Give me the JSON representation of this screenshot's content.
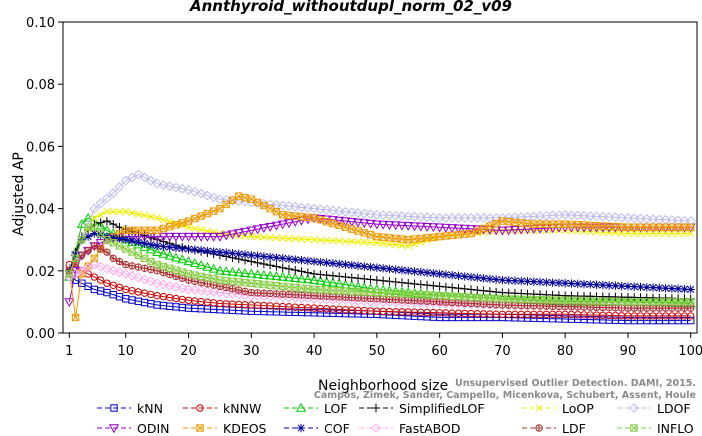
{
  "chart_data": {
    "type": "line",
    "title": "Annthyroid_withoutdupl_norm_02_v09",
    "xlabel": "Neighborhood size",
    "ylabel": "Adjusted AP",
    "xlim": [
      0,
      101
    ],
    "ylim": [
      0,
      0.1
    ],
    "xticks": [
      1,
      10,
      20,
      30,
      40,
      50,
      60,
      70,
      80,
      90,
      100
    ],
    "yticks": [
      "0.00",
      "0.02",
      "0.04",
      "0.06",
      "0.08",
      "0.10"
    ],
    "legend_position": "bottom",
    "series": [
      {
        "name": "kNN",
        "color": "#0000cc",
        "marker": "square",
        "points": [
          [
            1,
            0.019
          ],
          [
            2,
            0.017
          ],
          [
            3,
            0.016
          ],
          [
            5,
            0.014
          ],
          [
            7,
            0.013
          ],
          [
            10,
            0.011
          ],
          [
            15,
            0.009
          ],
          [
            20,
            0.008
          ],
          [
            25,
            0.0075
          ],
          [
            30,
            0.007
          ],
          [
            40,
            0.0065
          ],
          [
            50,
            0.006
          ],
          [
            60,
            0.005
          ],
          [
            70,
            0.005
          ],
          [
            80,
            0.0045
          ],
          [
            90,
            0.004
          ],
          [
            100,
            0.004
          ]
        ]
      },
      {
        "name": "kNNW",
        "color": "#cc0000",
        "marker": "circle",
        "points": [
          [
            1,
            0.022
          ],
          [
            2,
            0.021
          ],
          [
            3,
            0.02
          ],
          [
            5,
            0.018
          ],
          [
            7,
            0.016
          ],
          [
            10,
            0.014
          ],
          [
            15,
            0.012
          ],
          [
            20,
            0.0105
          ],
          [
            25,
            0.0095
          ],
          [
            30,
            0.009
          ],
          [
            40,
            0.008
          ],
          [
            50,
            0.007
          ],
          [
            60,
            0.0065
          ],
          [
            70,
            0.006
          ],
          [
            80,
            0.006
          ],
          [
            90,
            0.0055
          ],
          [
            100,
            0.0055
          ]
        ]
      },
      {
        "name": "LOF",
        "color": "#00cc00",
        "marker": "triangle-up",
        "points": [
          [
            1,
            0.018
          ],
          [
            2,
            0.026
          ],
          [
            3,
            0.035
          ],
          [
            4,
            0.037
          ],
          [
            5,
            0.036
          ],
          [
            7,
            0.033
          ],
          [
            10,
            0.03
          ],
          [
            15,
            0.026
          ],
          [
            20,
            0.023
          ],
          [
            25,
            0.02
          ],
          [
            30,
            0.019
          ],
          [
            40,
            0.017
          ],
          [
            50,
            0.014
          ],
          [
            60,
            0.012
          ],
          [
            70,
            0.011
          ],
          [
            80,
            0.01
          ],
          [
            90,
            0.01
          ],
          [
            100,
            0.0095
          ]
        ]
      },
      {
        "name": "SimplifiedLOF",
        "color": "#000000",
        "marker": "plus",
        "points": [
          [
            1,
            0.02
          ],
          [
            2,
            0.026
          ],
          [
            3,
            0.031
          ],
          [
            5,
            0.035
          ],
          [
            7,
            0.036
          ],
          [
            9,
            0.034
          ],
          [
            12,
            0.032
          ],
          [
            15,
            0.03
          ],
          [
            20,
            0.027
          ],
          [
            25,
            0.025
          ],
          [
            30,
            0.023
          ],
          [
            40,
            0.019
          ],
          [
            50,
            0.017
          ],
          [
            60,
            0.015
          ],
          [
            70,
            0.013
          ],
          [
            80,
            0.012
          ],
          [
            90,
            0.0115
          ],
          [
            100,
            0.011
          ]
        ]
      },
      {
        "name": "LoOP",
        "color": "#eeee00",
        "marker": "x",
        "points": [
          [
            1,
            0.02
          ],
          [
            2,
            0.025
          ],
          [
            3,
            0.03
          ],
          [
            5,
            0.037
          ],
          [
            7,
            0.039
          ],
          [
            10,
            0.039
          ],
          [
            15,
            0.037
          ],
          [
            20,
            0.034
          ],
          [
            25,
            0.032
          ],
          [
            30,
            0.031
          ],
          [
            40,
            0.03
          ],
          [
            50,
            0.029
          ],
          [
            55,
            0.028
          ],
          [
            60,
            0.031
          ],
          [
            70,
            0.033
          ],
          [
            80,
            0.033
          ],
          [
            90,
            0.032
          ],
          [
            100,
            0.032
          ]
        ]
      },
      {
        "name": "LDOF",
        "color": "#bbbbee",
        "marker": "diamond",
        "points": [
          [
            1,
            0.02
          ],
          [
            3,
            0.03
          ],
          [
            5,
            0.04
          ],
          [
            8,
            0.045
          ],
          [
            10,
            0.049
          ],
          [
            12,
            0.051
          ],
          [
            15,
            0.048
          ],
          [
            20,
            0.046
          ],
          [
            25,
            0.043
          ],
          [
            30,
            0.042
          ],
          [
            40,
            0.04
          ],
          [
            50,
            0.038
          ],
          [
            60,
            0.037
          ],
          [
            70,
            0.037
          ],
          [
            80,
            0.038
          ],
          [
            90,
            0.037
          ],
          [
            100,
            0.036
          ]
        ]
      },
      {
        "name": "ODIN",
        "color": "#9900cc",
        "marker": "triangle-down",
        "points": [
          [
            1,
            0.01
          ],
          [
            2,
            0.02
          ],
          [
            3,
            0.025
          ],
          [
            5,
            0.028
          ],
          [
            7,
            0.03
          ],
          [
            10,
            0.031
          ],
          [
            15,
            0.031
          ],
          [
            20,
            0.031
          ],
          [
            25,
            0.031
          ],
          [
            30,
            0.033
          ],
          [
            35,
            0.035
          ],
          [
            40,
            0.037
          ],
          [
            45,
            0.036
          ],
          [
            50,
            0.035
          ],
          [
            60,
            0.034
          ],
          [
            70,
            0.033
          ],
          [
            80,
            0.034
          ],
          [
            90,
            0.034
          ],
          [
            100,
            0.034
          ]
        ]
      },
      {
        "name": "KDEOS",
        "color": "#ee9900",
        "marker": "square-x",
        "points": [
          [
            1,
            0.02
          ],
          [
            2,
            0.005
          ],
          [
            3,
            0.019
          ],
          [
            5,
            0.024
          ],
          [
            7,
            0.03
          ],
          [
            10,
            0.033
          ],
          [
            15,
            0.033
          ],
          [
            20,
            0.036
          ],
          [
            25,
            0.04
          ],
          [
            28,
            0.044
          ],
          [
            30,
            0.043
          ],
          [
            35,
            0.038
          ],
          [
            40,
            0.037
          ],
          [
            45,
            0.034
          ],
          [
            50,
            0.031
          ],
          [
            55,
            0.03
          ],
          [
            60,
            0.031
          ],
          [
            65,
            0.032
          ],
          [
            70,
            0.036
          ],
          [
            75,
            0.035
          ],
          [
            80,
            0.035
          ],
          [
            90,
            0.034
          ],
          [
            100,
            0.034
          ]
        ]
      },
      {
        "name": "COF",
        "color": "#000099",
        "marker": "asterisk",
        "points": [
          [
            1,
            0.02
          ],
          [
            2,
            0.025
          ],
          [
            3,
            0.03
          ],
          [
            5,
            0.032
          ],
          [
            7,
            0.031
          ],
          [
            10,
            0.03
          ],
          [
            15,
            0.028
          ],
          [
            20,
            0.027
          ],
          [
            25,
            0.026
          ],
          [
            30,
            0.025
          ],
          [
            40,
            0.023
          ],
          [
            50,
            0.021
          ],
          [
            60,
            0.019
          ],
          [
            70,
            0.017
          ],
          [
            80,
            0.016
          ],
          [
            90,
            0.015
          ],
          [
            100,
            0.014
          ]
        ]
      },
      {
        "name": "FastABOD",
        "color": "#ffaaee",
        "marker": "diamond",
        "points": [
          [
            1,
            0.018
          ],
          [
            3,
            0.02
          ],
          [
            5,
            0.022
          ],
          [
            8,
            0.02
          ],
          [
            10,
            0.019
          ],
          [
            15,
            0.016
          ],
          [
            20,
            0.014
          ],
          [
            25,
            0.013
          ],
          [
            30,
            0.012
          ],
          [
            40,
            0.011
          ],
          [
            50,
            0.01
          ],
          [
            60,
            0.0095
          ],
          [
            70,
            0.009
          ],
          [
            80,
            0.0085
          ],
          [
            90,
            0.008
          ],
          [
            100,
            0.008
          ]
        ]
      },
      {
        "name": "LDF",
        "color": "#aa3333",
        "marker": "circle-plus",
        "points": [
          [
            1,
            0.02
          ],
          [
            3,
            0.025
          ],
          [
            5,
            0.028
          ],
          [
            7,
            0.026
          ],
          [
            8,
            0.024
          ],
          [
            10,
            0.022
          ],
          [
            15,
            0.02
          ],
          [
            20,
            0.017
          ],
          [
            25,
            0.015
          ],
          [
            30,
            0.013
          ],
          [
            40,
            0.012
          ],
          [
            50,
            0.011
          ],
          [
            60,
            0.01
          ],
          [
            70,
            0.009
          ],
          [
            80,
            0.0085
          ],
          [
            90,
            0.008
          ],
          [
            100,
            0.008
          ]
        ]
      },
      {
        "name": "INFLO",
        "color": "#88cc44",
        "marker": "square-star",
        "points": [
          [
            1,
            0.019
          ],
          [
            2,
            0.024
          ],
          [
            3,
            0.03
          ],
          [
            4,
            0.034
          ],
          [
            5,
            0.034
          ],
          [
            7,
            0.03
          ],
          [
            10,
            0.027
          ],
          [
            15,
            0.022
          ],
          [
            20,
            0.019
          ],
          [
            25,
            0.017
          ],
          [
            30,
            0.016
          ],
          [
            40,
            0.014
          ],
          [
            50,
            0.013
          ],
          [
            60,
            0.012
          ],
          [
            70,
            0.011
          ],
          [
            80,
            0.0105
          ],
          [
            90,
            0.01
          ],
          [
            100,
            0.01
          ]
        ]
      }
    ],
    "legend_rows": [
      [
        "kNN",
        "kNNW",
        "LOF",
        "SimplifiedLOF",
        "LoOP",
        "LDOF"
      ],
      [
        "ODIN",
        "KDEOS",
        "COF",
        "FastABOD",
        "LDF",
        "INFLO"
      ]
    ]
  },
  "watermark": {
    "line1": "Unsupervised Outlier Detection. DAMI, 2015.",
    "line2": "Campos, Zimek, Sander, Campello, Micenkova, Schubert, Assent, Houle"
  }
}
